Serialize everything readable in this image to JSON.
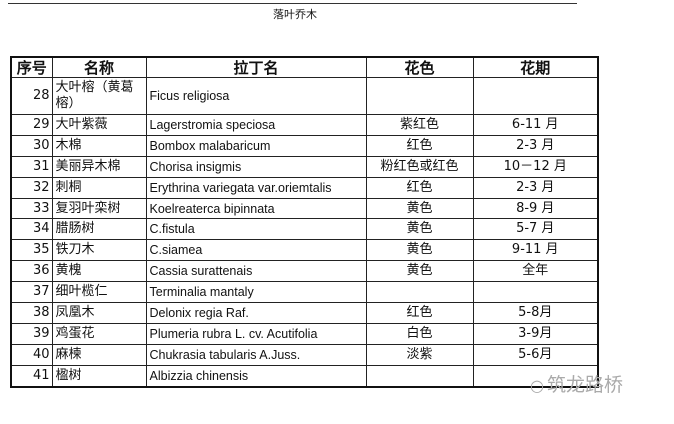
{
  "title": "落叶乔木",
  "table": {
    "headers": [
      "序号",
      "名称",
      "拉丁名",
      "花色",
      "花期"
    ],
    "rows": [
      {
        "no": "28",
        "name": "大叶榕（黄葛榕）",
        "latin": "Ficus religiosa",
        "color": "",
        "period": ""
      },
      {
        "no": "29",
        "name": "大叶紫薇",
        "latin": "Lagerstromia speciosa",
        "color": "紫红色",
        "period": "6-11 月"
      },
      {
        "no": "30",
        "name": "木棉",
        "latin": "Bombox malabaricum",
        "color": "红色",
        "period": "2-3 月"
      },
      {
        "no": "31",
        "name": "美丽异木棉",
        "latin": "Chorisa insigmis",
        "color": "粉红色或红色",
        "period": "10－12 月"
      },
      {
        "no": "32",
        "name": "刺桐",
        "latin": "Erythrina variegata var.oriemtalis",
        "color": "红色",
        "period": "2-3 月"
      },
      {
        "no": "33",
        "name": "复羽叶栾树",
        "latin": "Koelreaterca bipinnata",
        "color": "黄色",
        "period": "8-9 月"
      },
      {
        "no": "34",
        "name": "腊肠树",
        "latin": "C.fistula",
        "color": "黄色",
        "period": "5-7 月"
      },
      {
        "no": "35",
        "name": "铁刀木",
        "latin": "C.siamea",
        "color": "黄色",
        "period": "9-11 月"
      },
      {
        "no": "36",
        "name": "黄槐",
        "latin": "Cassia surattenais",
        "color": "黄色",
        "period": "全年"
      },
      {
        "no": "37",
        "name": "细叶榄仁",
        "latin": "Terminalia mantaly",
        "color": "",
        "period": ""
      },
      {
        "no": "38",
        "name": "凤凰木",
        "latin": "Delonix regia Raf.",
        "color": "红色",
        "period": "5-8月"
      },
      {
        "no": "39",
        "name": "鸡蛋花",
        "latin": "Plumeria rubra L. cv. Acutifolia",
        "color": "白色",
        "period": "3-9月"
      },
      {
        "no": "40",
        "name": "麻楝",
        "latin": "Chukrasia tabularis A.Juss.",
        "color": "淡紫",
        "period": "5-6月"
      },
      {
        "no": "41",
        "name": "楹树",
        "latin": "Albizzia chinensis",
        "color": "",
        "period": ""
      }
    ]
  },
  "watermark": {
    "icon": "wechat-icon",
    "text": "筑龙路桥"
  }
}
